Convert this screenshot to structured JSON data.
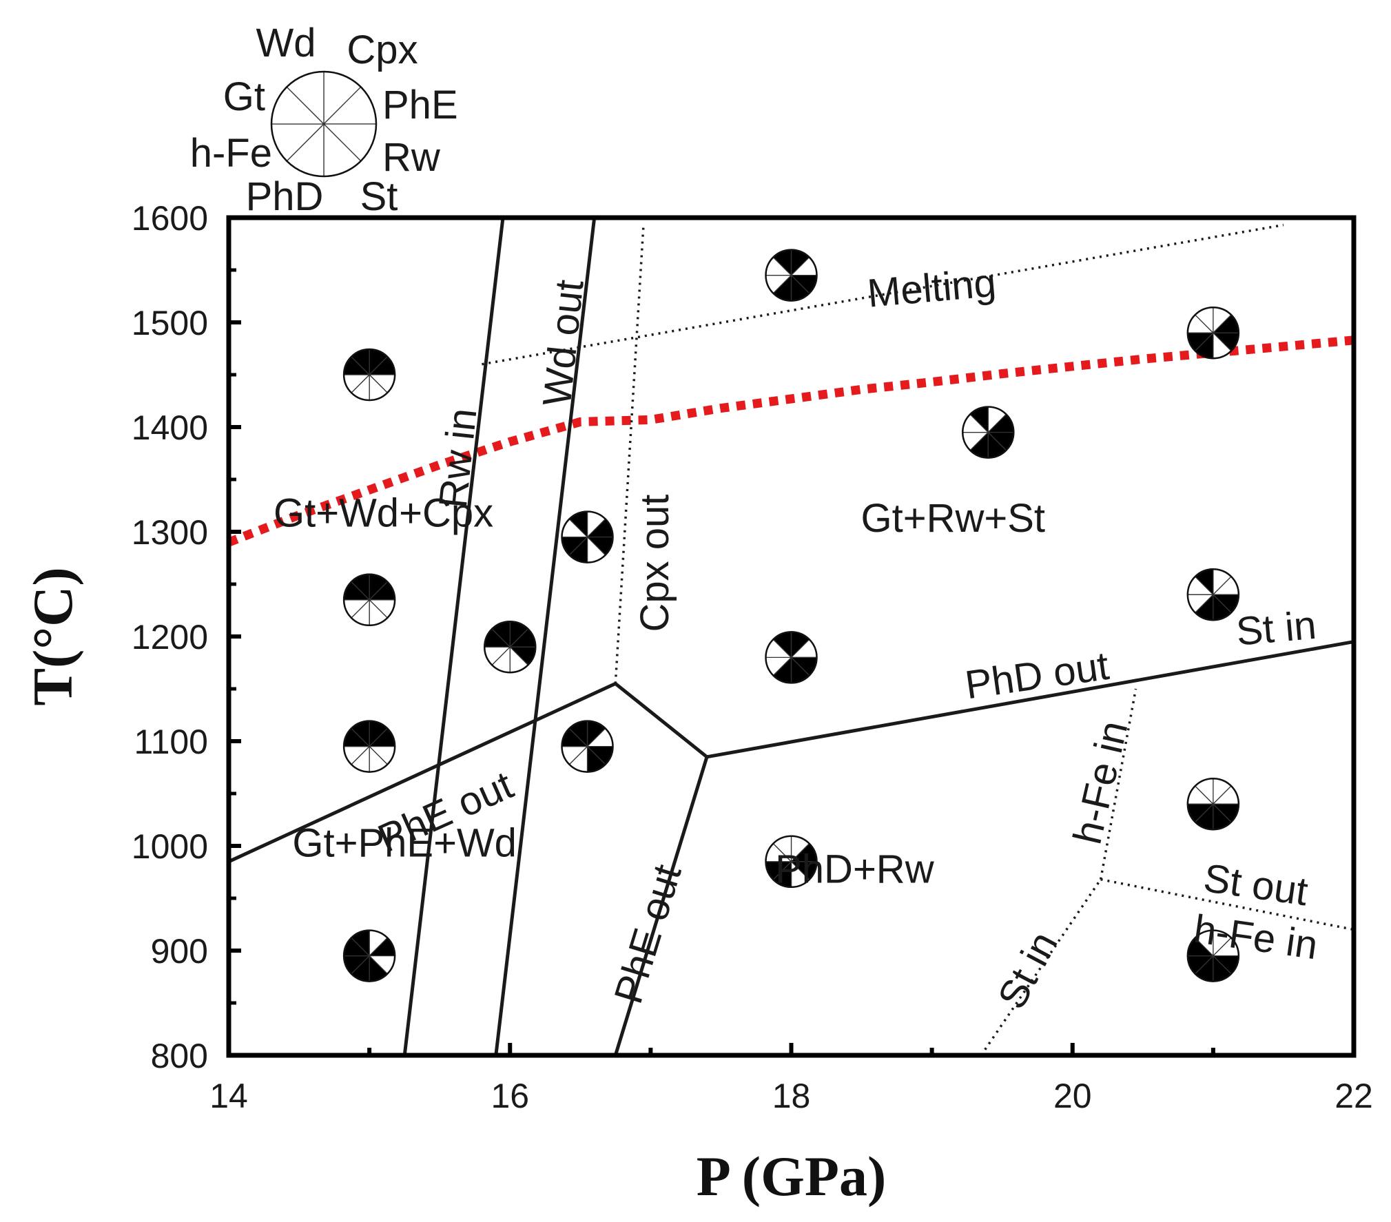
{
  "chart_data": {
    "type": "phase-diagram",
    "xlabel": "P (GPa)",
    "ylabel": "T(°C)",
    "xlim": [
      14,
      22
    ],
    "ylim": [
      800,
      1600
    ],
    "xticks": [
      14,
      16,
      18,
      20,
      22
    ],
    "yticks": [
      800,
      900,
      1000,
      1100,
      1200,
      1300,
      1400,
      1500,
      1600
    ],
    "legend": {
      "placement": "top-left",
      "phases": [
        "Cpx",
        "PhE",
        "Rw",
        "St",
        "PhD",
        "h-Fe",
        "Gt",
        "Wd"
      ]
    },
    "boundaries": [
      {
        "label": "Rw in",
        "style": "solid",
        "points": [
          [
            15.25,
            800
          ],
          [
            15.95,
            1600
          ]
        ]
      },
      {
        "label": "Wd out",
        "style": "solid",
        "points": [
          [
            15.9,
            800
          ],
          [
            16.6,
            1600
          ]
        ]
      },
      {
        "label": "PhE out",
        "style": "solid",
        "points": [
          [
            14.0,
            985
          ],
          [
            16.75,
            1155
          ]
        ]
      },
      {
        "label": "",
        "style": "solid",
        "points": [
          [
            16.75,
            1155
          ],
          [
            17.4,
            1085
          ]
        ]
      },
      {
        "label": "PhE out",
        "style": "solid",
        "points": [
          [
            16.75,
            800
          ],
          [
            17.4,
            1085
          ]
        ]
      },
      {
        "label": "PhD out",
        "style": "solid",
        "points": [
          [
            17.4,
            1085
          ],
          [
            22.0,
            1195
          ]
        ]
      },
      {
        "label": "Cpx out",
        "style": "dotted",
        "points": [
          [
            16.75,
            1155
          ],
          [
            16.95,
            1595
          ]
        ]
      },
      {
        "label": "Melting",
        "style": "dotted",
        "points": [
          [
            15.8,
            1460
          ],
          [
            21.5,
            1593
          ]
        ]
      },
      {
        "label": "h-Fe in",
        "style": "dotted",
        "points": [
          [
            20.2,
            968
          ],
          [
            20.45,
            1150
          ]
        ]
      },
      {
        "label": "St in",
        "style": "dotted",
        "points": [
          [
            19.35,
            800
          ],
          [
            20.2,
            968
          ]
        ]
      },
      {
        "label": "St out / h-Fe in",
        "style": "dotted",
        "points": [
          [
            20.2,
            968
          ],
          [
            22.0,
            920
          ]
        ]
      },
      {
        "label": "",
        "style": "red-dashed",
        "points": [
          [
            14.0,
            1290
          ],
          [
            14.5,
            1316
          ],
          [
            15.0,
            1340
          ],
          [
            15.5,
            1364
          ],
          [
            16.0,
            1386
          ],
          [
            16.5,
            1405
          ],
          [
            17.0,
            1407
          ],
          [
            17.5,
            1418
          ],
          [
            18.0,
            1427
          ],
          [
            18.5,
            1436
          ],
          [
            19.0,
            1443
          ],
          [
            19.5,
            1451
          ],
          [
            20.0,
            1458
          ],
          [
            20.5,
            1465
          ],
          [
            21.0,
            1471
          ],
          [
            21.5,
            1477
          ],
          [
            22.0,
            1483
          ]
        ]
      }
    ],
    "boundary_labels": [
      {
        "text": "Melting",
        "p": 19.0,
        "t": 1530,
        "angle": -5
      },
      {
        "text": "Rw in",
        "p": 15.65,
        "t": 1370,
        "angle": -84
      },
      {
        "text": "Wd out",
        "p": 16.4,
        "t": 1480,
        "angle": -84
      },
      {
        "text": "Cpx out",
        "p": 17.05,
        "t": 1270,
        "angle": -90
      },
      {
        "text": "PhE out",
        "p": 15.55,
        "t": 1030,
        "angle": -24
      },
      {
        "text": "PhE out",
        "p": 17.0,
        "t": 915,
        "angle": -73
      },
      {
        "text": "PhD out",
        "p": 19.75,
        "t": 1160,
        "angle": -8
      },
      {
        "text": "St in",
        "p": 21.45,
        "t": 1205,
        "angle": -5
      },
      {
        "text": "h-Fe in",
        "p": 20.22,
        "t": 1060,
        "angle": -77
      },
      {
        "text": "St in",
        "p": 19.7,
        "t": 880,
        "angle": -62
      },
      {
        "text": "St out",
        "p": 21.3,
        "t": 960,
        "angle": 8
      },
      {
        "text": "h-Fe in",
        "p": 21.3,
        "t": 910,
        "angle": 8
      }
    ],
    "fields": [
      {
        "text": "Gt+Wd+Cpx",
        "p": 15.1,
        "t": 1315
      },
      {
        "text": "Gt+Rw+St",
        "p": 19.15,
        "t": 1310
      },
      {
        "text": "Gt+PhE+Wd",
        "p": 15.25,
        "t": 1000
      },
      {
        "text": "PhD+Rw",
        "p": 18.45,
        "t": 975
      }
    ],
    "experiments": [
      {
        "p": 15.0,
        "t": 1450,
        "phases": [
          "Gt",
          "Wd",
          "Cpx",
          "PhE"
        ]
      },
      {
        "p": 15.0,
        "t": 1235,
        "phases": [
          "Gt",
          "Wd",
          "Cpx",
          "PhE"
        ]
      },
      {
        "p": 15.0,
        "t": 1095,
        "phases": [
          "Gt",
          "Wd",
          "Cpx",
          "PhE"
        ]
      },
      {
        "p": 15.0,
        "t": 895,
        "phases": [
          "Gt",
          "Wd",
          "PhE",
          "St",
          "PhD",
          "h-Fe"
        ]
      },
      {
        "p": 16.0,
        "t": 1190,
        "phases": [
          "Gt",
          "Wd",
          "Cpx",
          "PhE",
          "Rw"
        ]
      },
      {
        "p": 16.55,
        "t": 1295,
        "phases": [
          "Wd",
          "PhE",
          "Rw",
          "PhD",
          "h-Fe"
        ]
      },
      {
        "p": 16.55,
        "t": 1095,
        "phases": [
          "Wd",
          "Cpx",
          "Rw",
          "St",
          "Gt"
        ]
      },
      {
        "p": 18.0,
        "t": 1545,
        "phases": [
          "Wd",
          "Cpx",
          "Rw",
          "St",
          "PhD"
        ]
      },
      {
        "p": 18.0,
        "t": 1180,
        "phases": [
          "Wd",
          "Cpx",
          "Rw",
          "St",
          "PhD"
        ]
      },
      {
        "p": 18.0,
        "t": 985,
        "phases": [
          "PhE",
          "Rw",
          "PhD",
          "h-Fe"
        ]
      },
      {
        "p": 19.4,
        "t": 1395,
        "phases": [
          "Wd",
          "PhE",
          "Rw",
          "St",
          "PhD"
        ]
      },
      {
        "p": 21.0,
        "t": 1490,
        "phases": [
          "PhE",
          "Rw",
          "PhD",
          "h-Fe"
        ]
      },
      {
        "p": 21.0,
        "t": 1240,
        "phases": [
          "Wd",
          "Rw",
          "St",
          "PhD"
        ]
      },
      {
        "p": 21.0,
        "t": 1040,
        "phases": [
          "Rw",
          "St",
          "PhD",
          "h-Fe"
        ]
      },
      {
        "p": 21.0,
        "t": 895,
        "phases": [
          "Rw",
          "St",
          "PhD",
          "h-Fe",
          "Gt"
        ]
      }
    ]
  }
}
